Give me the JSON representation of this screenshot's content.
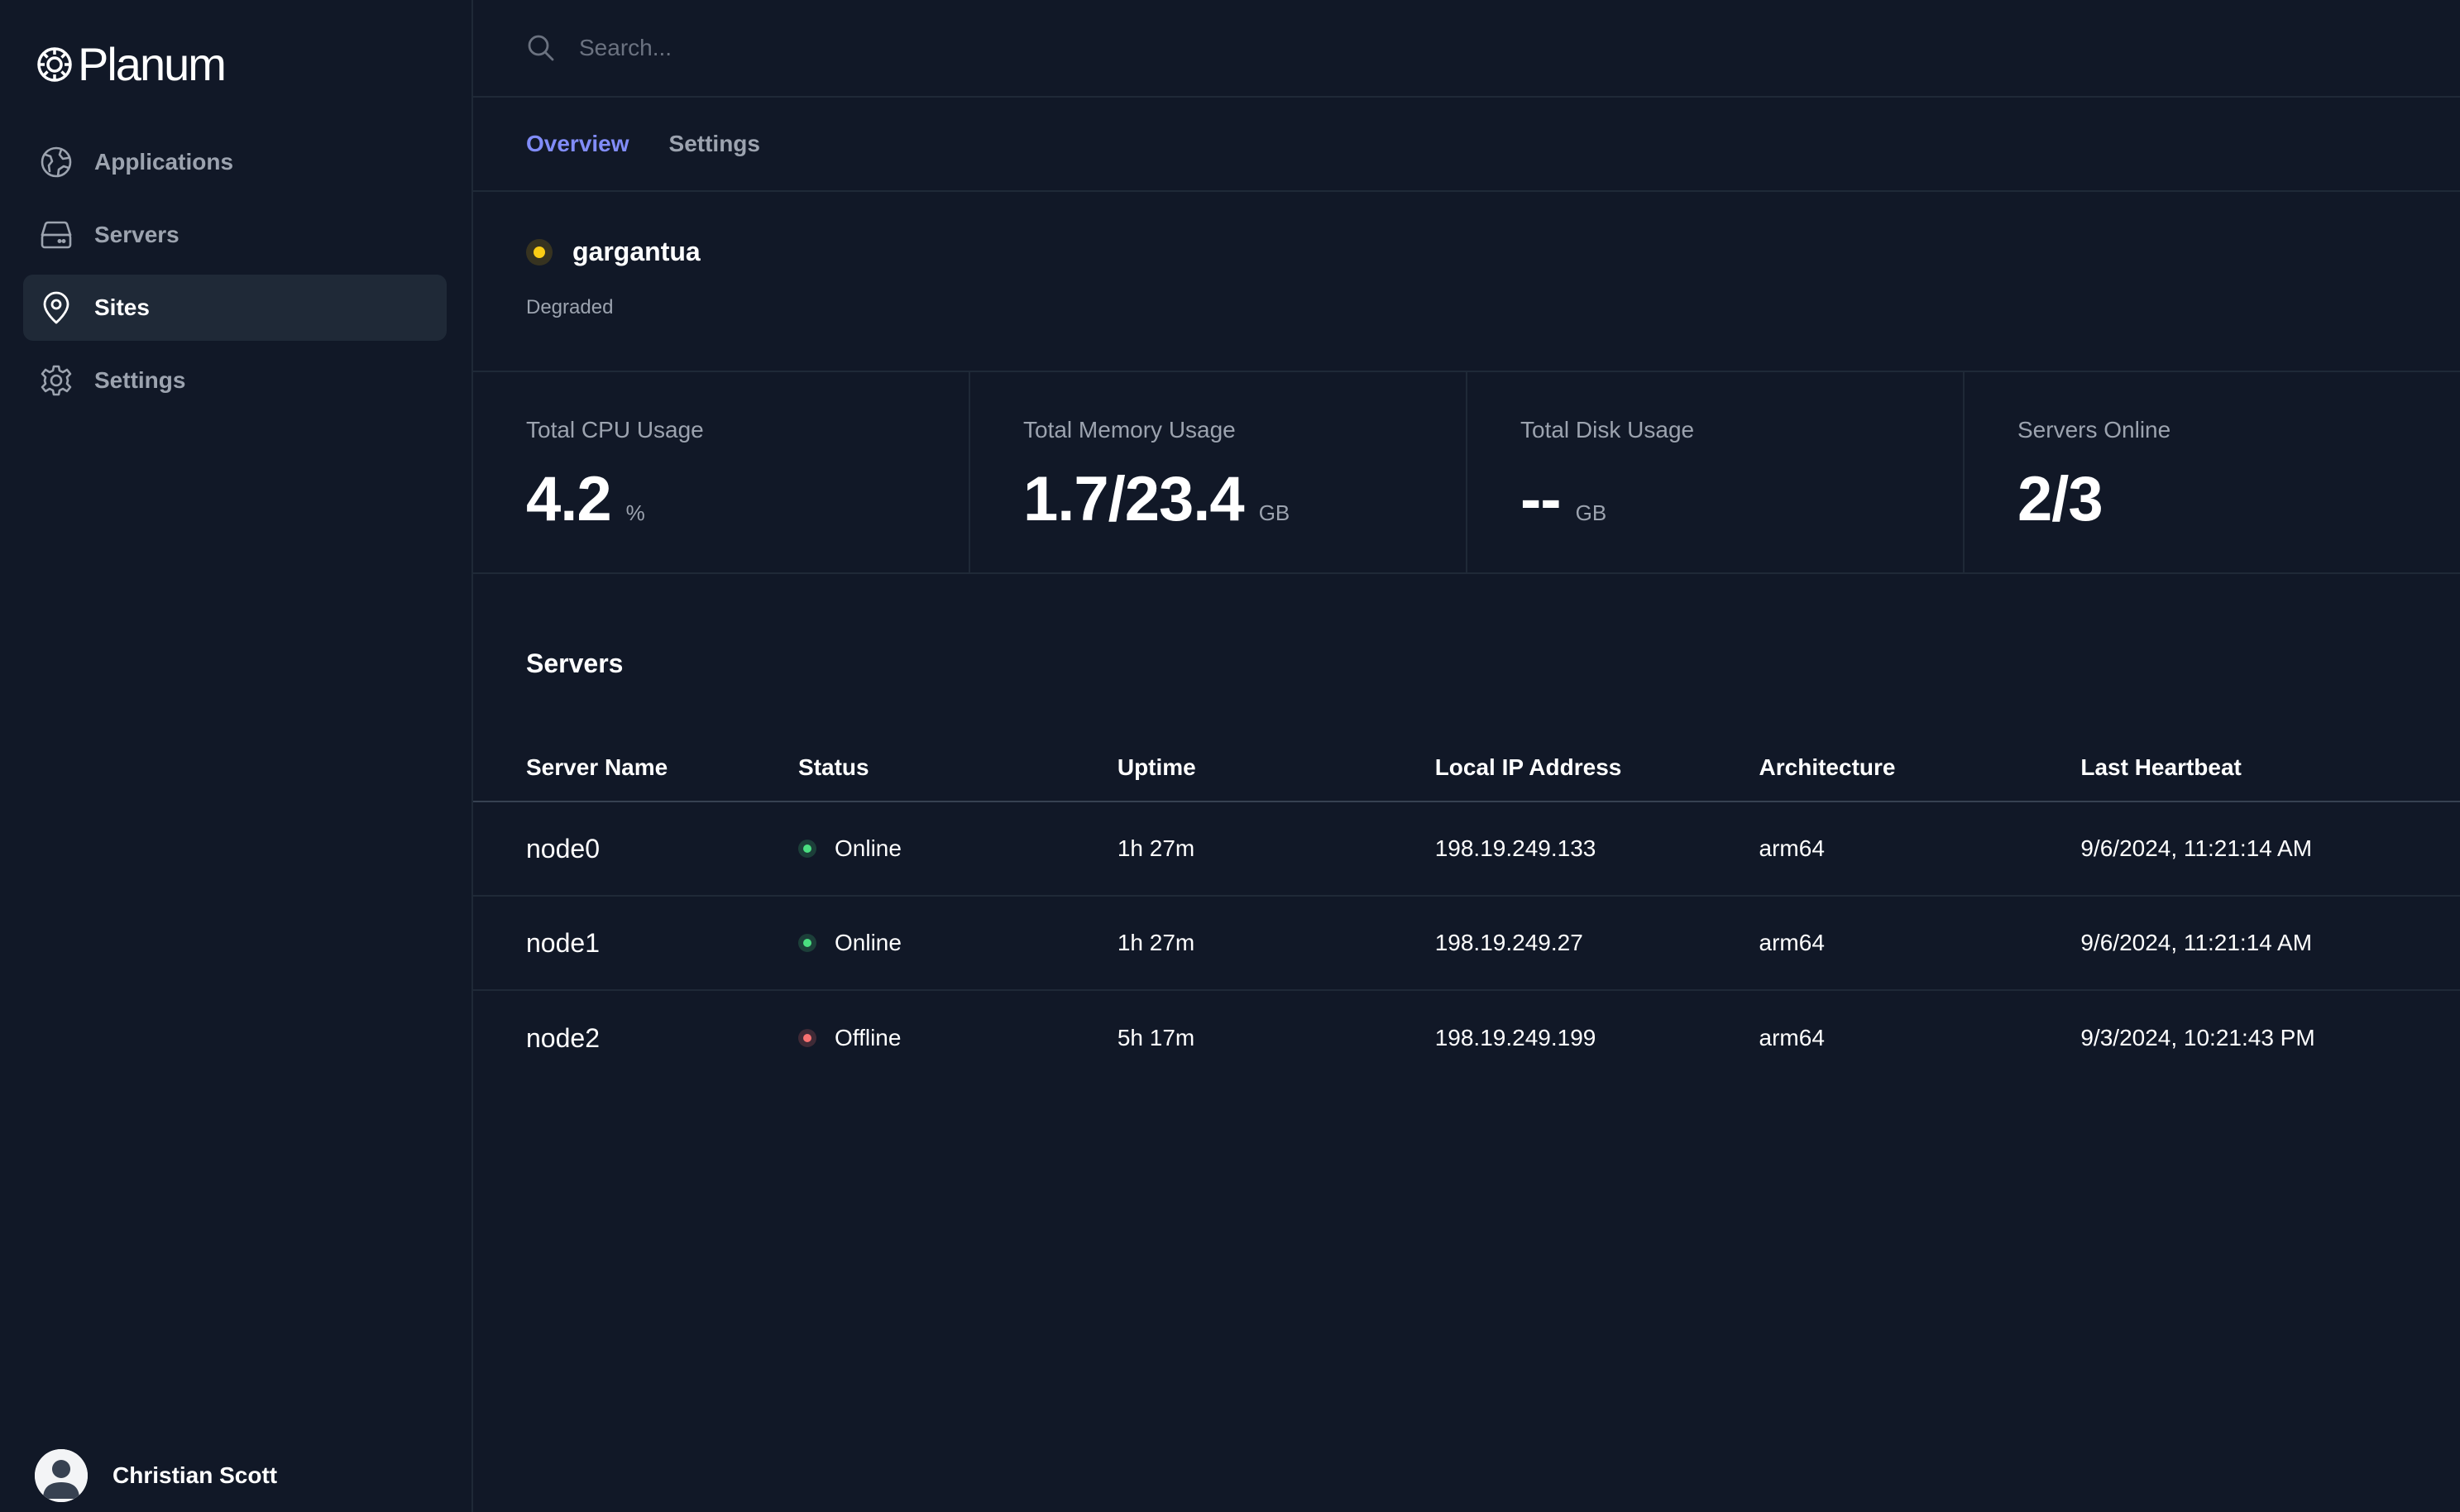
{
  "app": {
    "name": "Planum"
  },
  "colors": {
    "accent": "#818cf8",
    "degraded": "#facc15",
    "online": "#4ade80",
    "offline": "#f87171"
  },
  "sidebar": {
    "items": [
      {
        "label": "Applications",
        "icon": "globe-icon"
      },
      {
        "label": "Servers",
        "icon": "server-icon"
      },
      {
        "label": "Sites",
        "icon": "map-pin-icon",
        "active": true
      },
      {
        "label": "Settings",
        "icon": "gear-icon"
      }
    ],
    "user": {
      "name": "Christian Scott",
      "icon": "user-avatar-icon"
    }
  },
  "search": {
    "placeholder": "Search...",
    "value": ""
  },
  "tabs": [
    {
      "label": "Overview",
      "active": true
    },
    {
      "label": "Settings",
      "active": false
    }
  ],
  "site": {
    "name": "gargantua",
    "status": "Degraded"
  },
  "stats": [
    {
      "label": "Total CPU Usage",
      "value": "4.2",
      "unit": "%"
    },
    {
      "label": "Total Memory Usage",
      "value": "1.7/23.4",
      "unit": "GB"
    },
    {
      "label": "Total Disk Usage",
      "value": "--",
      "unit": "GB"
    },
    {
      "label": "Servers Online",
      "value": "2/3",
      "unit": ""
    }
  ],
  "servers": {
    "title": "Servers",
    "columns": [
      "Server Name",
      "Status",
      "Uptime",
      "Local IP Address",
      "Architecture",
      "Last Heartbeat"
    ],
    "rows": [
      {
        "name": "node0",
        "status": "Online",
        "uptime": "1h 27m",
        "ip": "198.19.249.133",
        "arch": "arm64",
        "heartbeat": "9/6/2024, 11:21:14 AM"
      },
      {
        "name": "node1",
        "status": "Online",
        "uptime": "1h 27m",
        "ip": "198.19.249.27",
        "arch": "arm64",
        "heartbeat": "9/6/2024, 11:21:14 AM"
      },
      {
        "name": "node2",
        "status": "Offline",
        "uptime": "5h 17m",
        "ip": "198.19.249.199",
        "arch": "arm64",
        "heartbeat": "9/3/2024, 10:21:43 PM"
      }
    ]
  }
}
